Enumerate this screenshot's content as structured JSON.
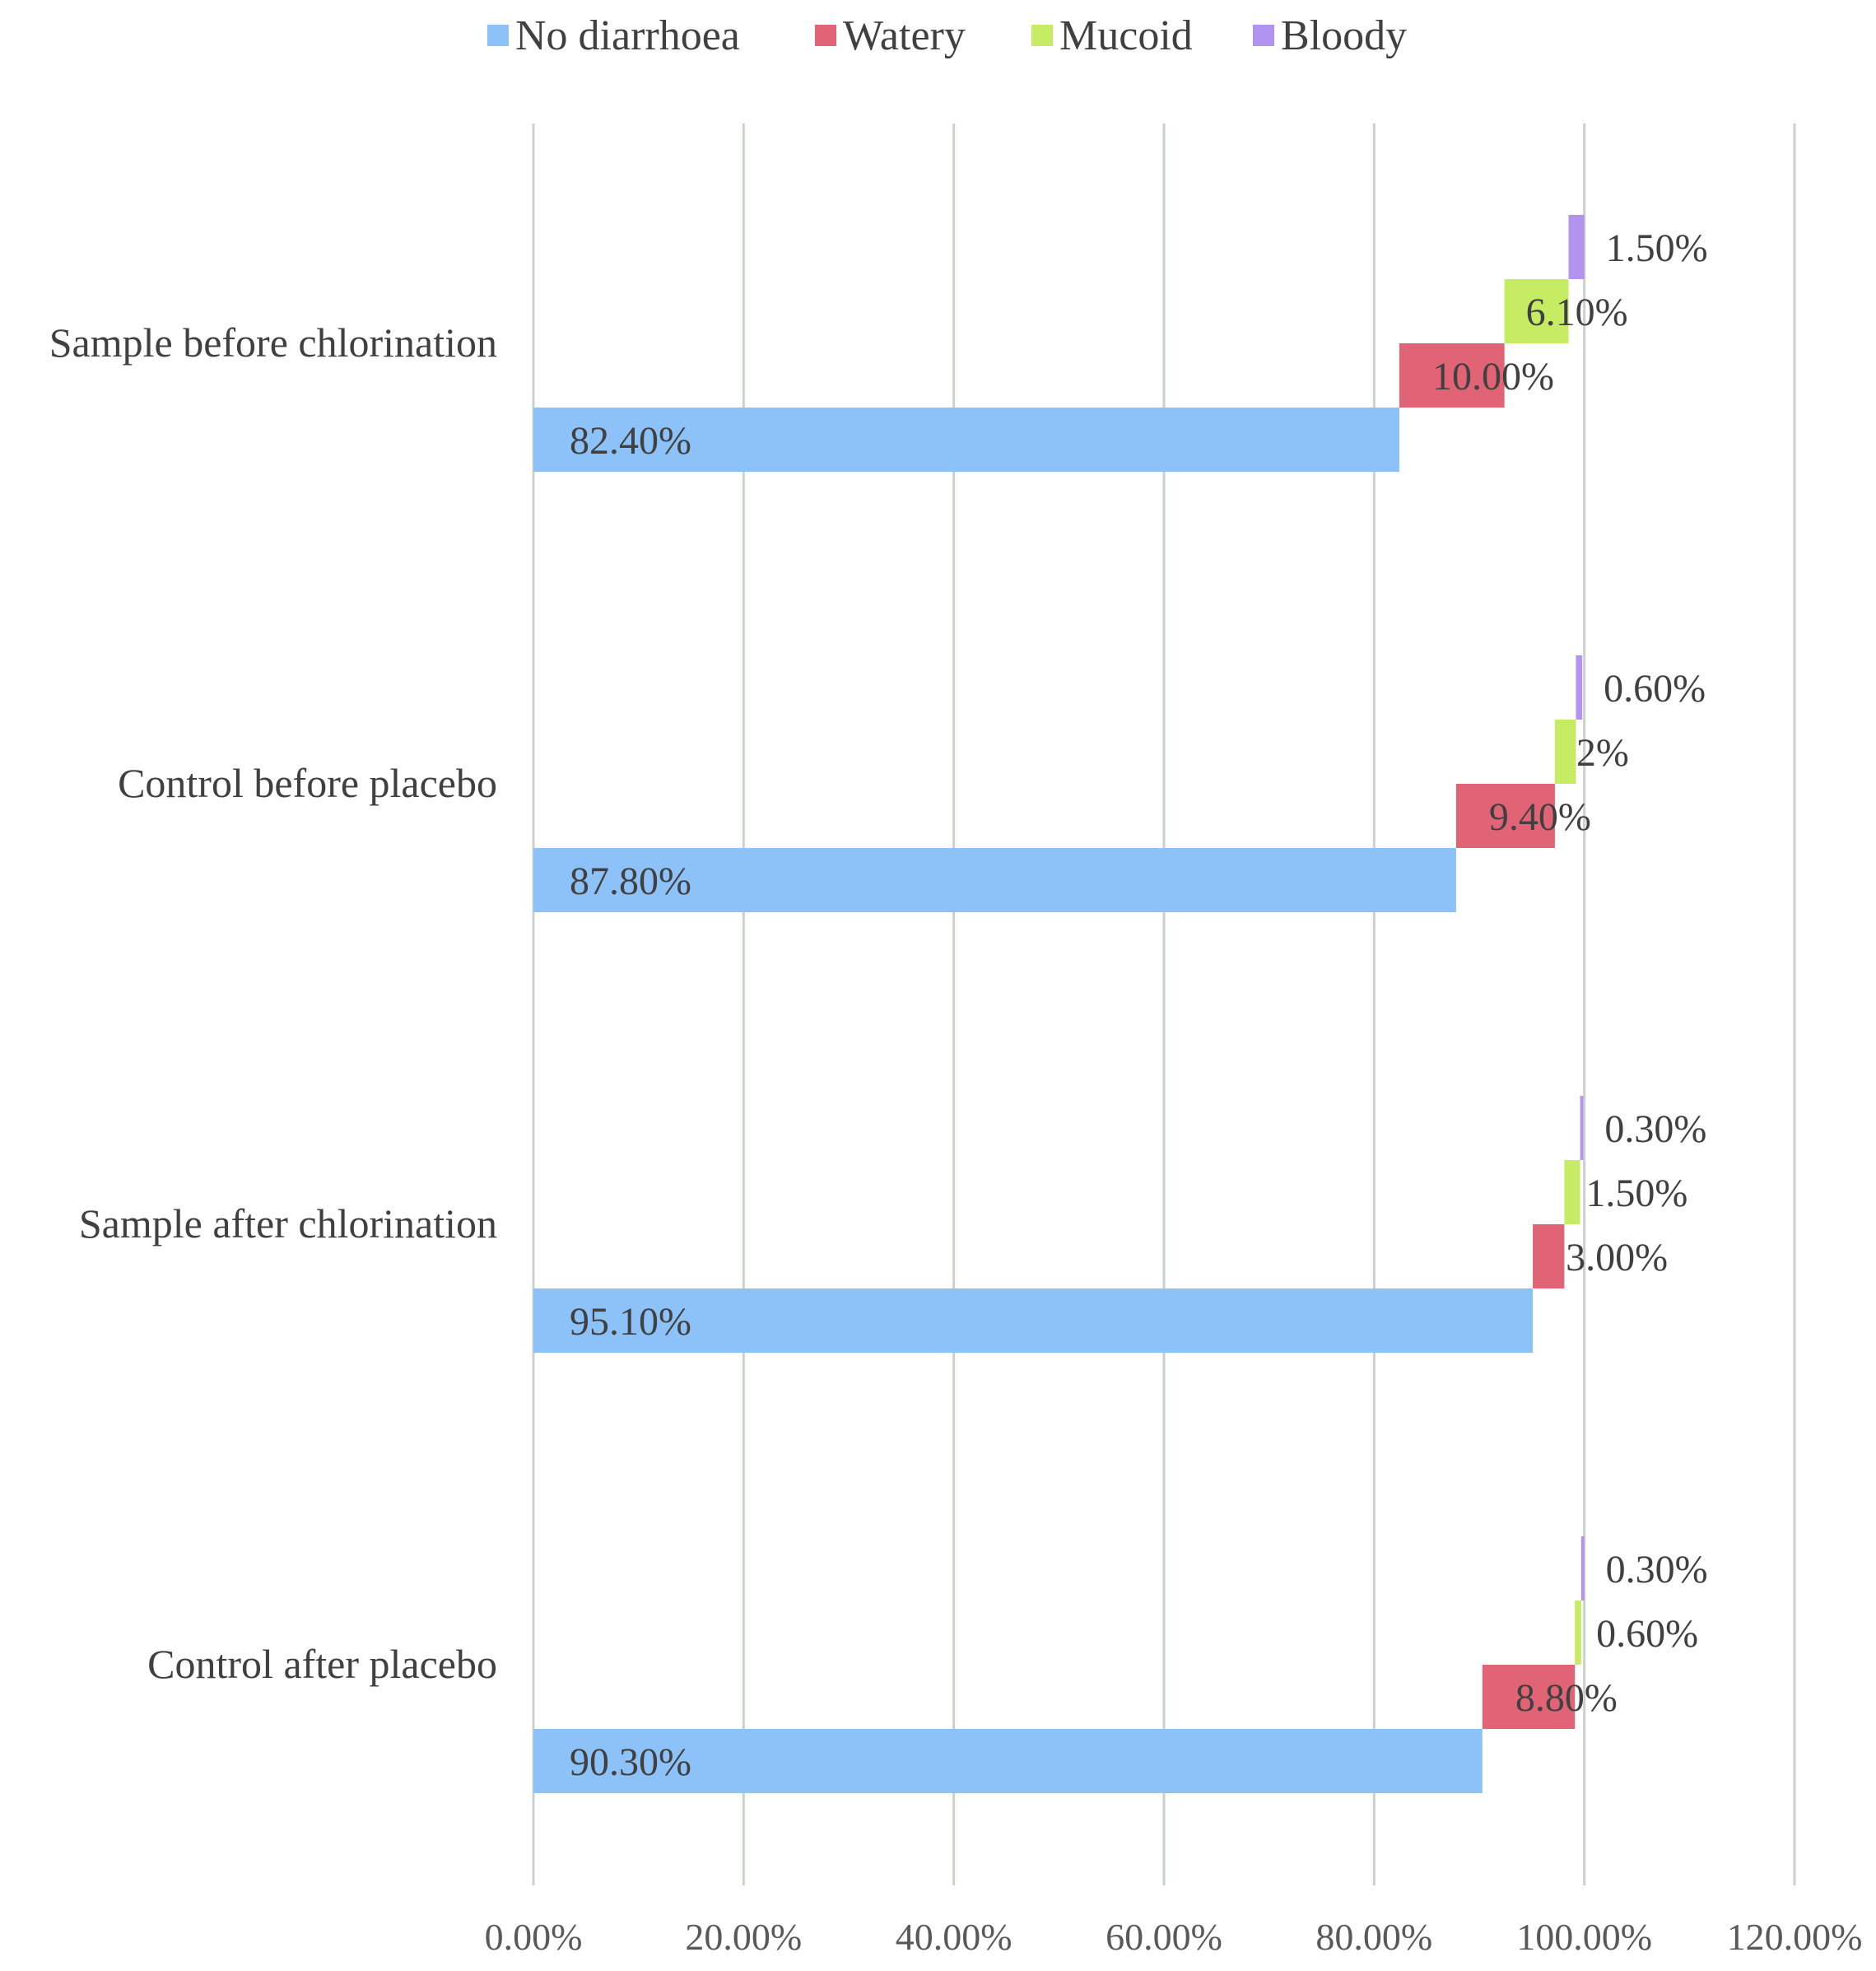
{
  "chart_data": {
    "type": "bar",
    "orientation": "horizontal",
    "categories": [
      "Sample before chlorination",
      "Control before placebo",
      "Sample after chlorination",
      "Control after placebo"
    ],
    "series": [
      {
        "name": "No diarrhoea",
        "color": "#8cc2f7",
        "values": [
          82.4,
          87.8,
          95.1,
          90.3
        ],
        "labels": [
          "82.40%",
          "87.80%",
          "95.10%",
          "90.30%"
        ]
      },
      {
        "name": "Watery",
        "color": "#e06476",
        "values": [
          10.0,
          9.4,
          3.0,
          8.8
        ],
        "labels": [
          "10.00%",
          "9.40%",
          "3.00%",
          "8.80%"
        ]
      },
      {
        "name": "Mucoid",
        "color": "#c6ec64",
        "values": [
          6.1,
          2.0,
          1.5,
          0.6
        ],
        "labels": [
          "6.10%",
          "2%",
          "1.50%",
          "0.60%"
        ]
      },
      {
        "name": "Bloody",
        "color": "#b294f0",
        "values": [
          1.5,
          0.6,
          0.3,
          0.3
        ],
        "labels": [
          "1.50%",
          "0.60%",
          "0.30%",
          "0.30%"
        ]
      }
    ],
    "xlim": [
      0,
      120
    ],
    "x_ticks": [
      0,
      20,
      40,
      60,
      80,
      100,
      120
    ],
    "x_tick_labels": [
      "0.00%",
      "20.00%",
      "40.00%",
      "60.00%",
      "80.00%",
      "100.00%",
      "120.00%"
    ],
    "legend_position": "top",
    "grid": "vertical",
    "title": "",
    "xlabel": "",
    "ylabel": ""
  }
}
